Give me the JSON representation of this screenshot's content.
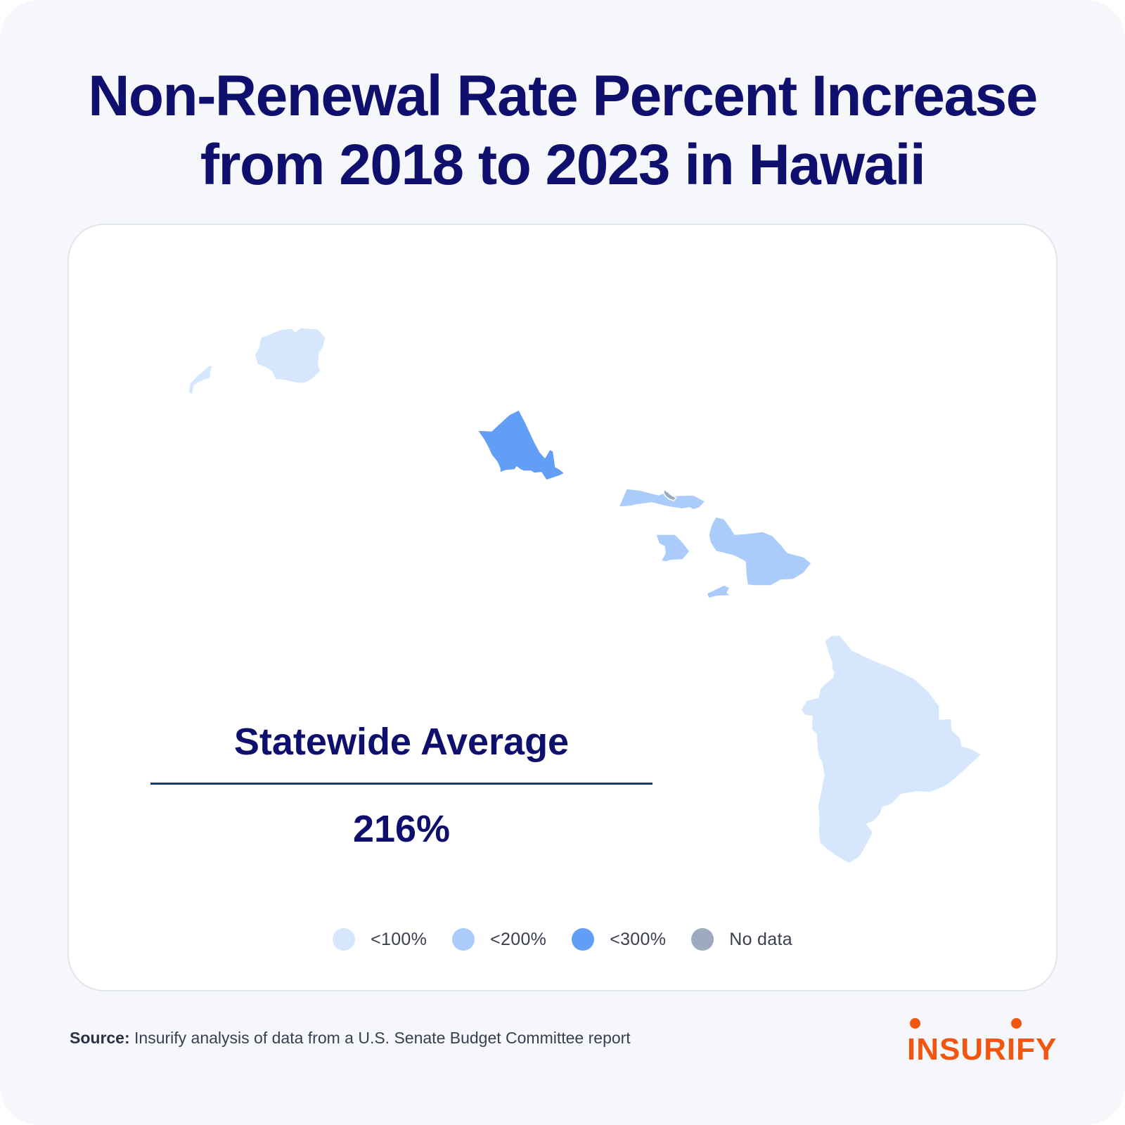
{
  "title": {
    "line1": "Non-Renewal Rate Percent Increase",
    "line2": "from 2018 to 2023 in Hawaii"
  },
  "statewide": {
    "label": "Statewide Average",
    "value": "216%"
  },
  "legend": [
    {
      "label": "<100%",
      "color": "#d6e6fd"
    },
    {
      "label": "<200%",
      "color": "#abcbfb"
    },
    {
      "label": "<300%",
      "color": "#639ef6"
    },
    {
      "label": "No data",
      "color": "#9dabc0"
    }
  ],
  "counties": [
    {
      "name": "Kauai",
      "bucket": "<100%",
      "color": "#d6e6fd"
    },
    {
      "name": "Honolulu",
      "bucket": "<300%",
      "color": "#639ef6"
    },
    {
      "name": "Maui",
      "bucket": "<200%",
      "color": "#abcbfb"
    },
    {
      "name": "Kalawao",
      "bucket": "No data",
      "color": "#9dabc0"
    },
    {
      "name": "Hawaii",
      "bucket": "<100%",
      "color": "#d6e6fd"
    }
  ],
  "source": {
    "prefix": "Source:",
    "text": " Insurify analysis of data from a U.S. Senate Budget Committee report"
  },
  "brand": {
    "logo_text": "INSURIFY",
    "color": "#f2550f"
  },
  "colors": {
    "title": "#0f0f6e",
    "background": "#f5f7fb",
    "card": "#ffffff"
  }
}
